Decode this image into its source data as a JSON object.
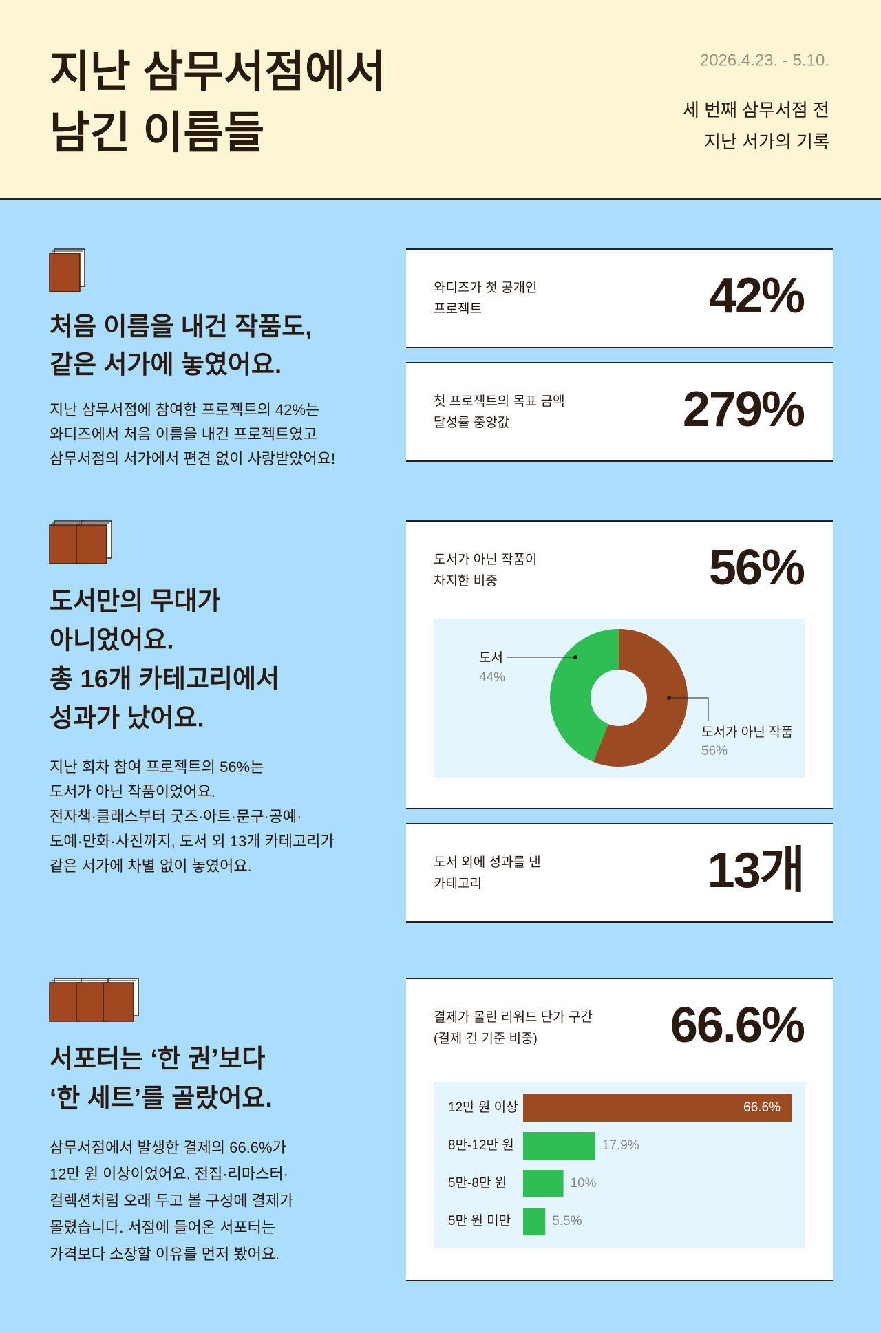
{
  "header": {
    "title": [
      "지난 삼무서점에서",
      "남긴 이름들"
    ],
    "date": "2026.4.23. - 5.10.",
    "subtitle": [
      "세 번째 삼무서점 전",
      "지난 서가의 기록"
    ]
  },
  "sections": [
    {
      "heading": [
        "처음 이름을 내건 작품도,",
        "같은 서가에 놓였어요."
      ],
      "body": [
        "지난 삼무서점에 참여한 프로젝트의 42%는",
        "와디즈에서 처음 이름을 내건 프로젝트였고",
        "삼무서점의 서가에서 편견 없이 사랑받았어요!"
      ],
      "cards": [
        {
          "label": [
            "와디즈가 첫 공개인",
            "프로젝트"
          ],
          "value": "42%"
        },
        {
          "label": [
            "첫 프로젝트의 목표 금액",
            "달성률 중앙값"
          ],
          "value": "279%"
        }
      ]
    },
    {
      "heading": [
        "도서만의 무대가",
        "아니었어요.",
        "총 16개 카테고리에서",
        "성과가 났어요."
      ],
      "body": [
        "지난 회차 참여 프로젝트의 56%는",
        "도서가 아닌 작품이었어요.",
        "전자책·클래스부터 굿즈·아트·문구·공예·",
        "도예·만화·사진까지, 도서 외 13개 카테고리가",
        "같은 서가에 차별 없이 놓였어요."
      ],
      "cards": [
        {
          "label": [
            "도서가 아닌 작품이",
            "차지한 비중"
          ],
          "value": "56%"
        },
        {
          "label": [
            "도서 외에 성과를 낸",
            "카테고리"
          ],
          "value": "13개"
        }
      ]
    },
    {
      "heading": [
        "서포터는 ‘한 권’보다",
        "‘한 세트’를 골랐어요."
      ],
      "body": [
        "삼무서점에서 발생한 결제의 66.6%가",
        "12만 원 이상이었어요. 전집·리마스터·",
        "컬렉션처럼 오래 두고 볼 구성에 결제가",
        "몰렸습니다. 서점에 들어온 서포터는",
        "가격보다 소장할 이유를 먼저 봤어요."
      ],
      "cards": [
        {
          "label": [
            "결제가 몰린 리워드 단가 구간",
            "(결제 건 기준 비중)"
          ],
          "value": "66.6%"
        }
      ]
    }
  ],
  "chart_data": [
    {
      "type": "pie",
      "categories": [
        "도서",
        "도서가 아닌 작품"
      ],
      "values": [
        44,
        56
      ],
      "value_labels": [
        "44%",
        "56%"
      ],
      "colors": [
        "#2fbe53",
        "#9b4a22"
      ]
    },
    {
      "type": "bar",
      "categories": [
        "12만 원 이상",
        "8만-12만 원",
        "5만-8만 원",
        "5만 원 미만"
      ],
      "values": [
        66.6,
        17.9,
        10,
        5.5
      ],
      "value_labels": [
        "66.6%",
        "17.9%",
        "10%",
        "5.5%"
      ],
      "colors": [
        "#9b4a22",
        "#2fbe53",
        "#2fbe53",
        "#2fbe53"
      ]
    }
  ]
}
